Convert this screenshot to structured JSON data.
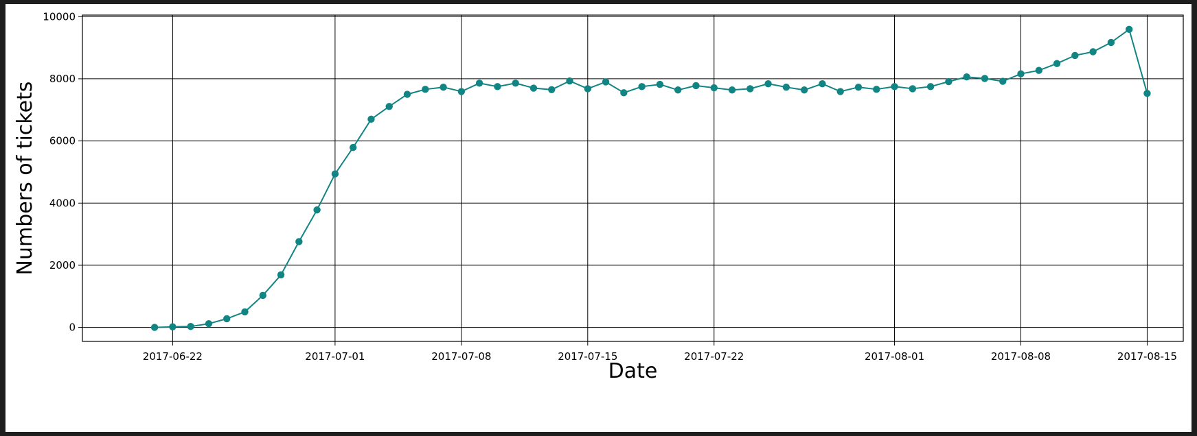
{
  "chart_data": {
    "type": "line",
    "xlabel": "Date",
    "ylabel": "Numbers of tickets",
    "x_axis_type": "date",
    "xlim": [
      "2017-06-17",
      "2017-08-17"
    ],
    "ylim": [
      -450,
      10050
    ],
    "grid": true,
    "line_color": "#118484",
    "marker": "circle",
    "x_ticks": [
      "2017-06-22",
      "2017-07-01",
      "2017-07-08",
      "2017-07-15",
      "2017-07-22",
      "2017-08-01",
      "2017-08-08",
      "2017-08-15"
    ],
    "y_ticks": [
      0,
      2000,
      4000,
      6000,
      8000,
      10000
    ],
    "series": [
      {
        "x": [
          "2017-06-21",
          "2017-06-22",
          "2017-06-23",
          "2017-06-24",
          "2017-06-25",
          "2017-06-26",
          "2017-06-27",
          "2017-06-28",
          "2017-06-29",
          "2017-06-30",
          "2017-07-01",
          "2017-07-02",
          "2017-07-03",
          "2017-07-04",
          "2017-07-05",
          "2017-07-06",
          "2017-07-07",
          "2017-07-08",
          "2017-07-09",
          "2017-07-10",
          "2017-07-11",
          "2017-07-12",
          "2017-07-13",
          "2017-07-14",
          "2017-07-15",
          "2017-07-16",
          "2017-07-17",
          "2017-07-18",
          "2017-07-19",
          "2017-07-20",
          "2017-07-21",
          "2017-07-22",
          "2017-07-23",
          "2017-07-24",
          "2017-07-25",
          "2017-07-26",
          "2017-07-27",
          "2017-07-28",
          "2017-07-29",
          "2017-07-30",
          "2017-07-31",
          "2017-08-01",
          "2017-08-02",
          "2017-08-03",
          "2017-08-04",
          "2017-08-05",
          "2017-08-06",
          "2017-08-07",
          "2017-08-08",
          "2017-08-09",
          "2017-08-10",
          "2017-08-11",
          "2017-08-12",
          "2017-08-13",
          "2017-08-14",
          "2017-08-15"
        ],
        "y": [
          0,
          20,
          30,
          120,
          280,
          500,
          1030,
          1690,
          2760,
          3780,
          4940,
          5790,
          6700,
          7110,
          7500,
          7660,
          7730,
          7590,
          7860,
          7750,
          7860,
          7700,
          7650,
          7930,
          7680,
          7900,
          7550,
          7750,
          7820,
          7640,
          7780,
          7710,
          7640,
          7680,
          7840,
          7730,
          7640,
          7840,
          7590,
          7730,
          7660,
          7750,
          7680,
          7750,
          7910,
          8060,
          8010,
          7920,
          8160,
          8270,
          8490,
          8750,
          8870,
          9170,
          9590,
          7530
        ]
      }
    ]
  }
}
